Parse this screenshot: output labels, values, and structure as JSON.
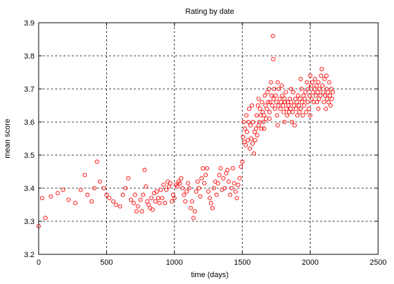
{
  "chart_data": {
    "type": "scatter",
    "title": "Rating by date",
    "xlabel": "time (days)",
    "ylabel": "mean score",
    "xlim": [
      0,
      2500
    ],
    "ylim": [
      3.2,
      3.9
    ],
    "xticks": [
      "0",
      "500",
      "1000",
      "1500",
      "2000",
      "2500"
    ],
    "yticks": [
      "3.2",
      "3.3",
      "3.4",
      "3.5",
      "3.6",
      "3.7",
      "3.8",
      "3.9"
    ],
    "grid": true,
    "marker_color": "#ff0000",
    "series": [
      {
        "name": "",
        "points": [
          [
            0,
            3.285
          ],
          [
            25,
            3.37
          ],
          [
            50,
            3.31
          ],
          [
            90,
            3.375
          ],
          [
            140,
            3.385
          ],
          [
            180,
            3.395
          ],
          [
            220,
            3.365
          ],
          [
            270,
            3.355
          ],
          [
            310,
            3.395
          ],
          [
            340,
            3.44
          ],
          [
            360,
            3.38
          ],
          [
            390,
            3.36
          ],
          [
            410,
            3.4
          ],
          [
            430,
            3.48
          ],
          [
            450,
            3.42
          ],
          [
            480,
            3.4
          ],
          [
            500,
            3.38
          ],
          [
            520,
            3.37
          ],
          [
            550,
            3.36
          ],
          [
            570,
            3.35
          ],
          [
            600,
            3.345
          ],
          [
            620,
            3.38
          ],
          [
            640,
            3.4
          ],
          [
            660,
            3.43
          ],
          [
            680,
            3.365
          ],
          [
            700,
            3.355
          ],
          [
            710,
            3.38
          ],
          [
            720,
            3.33
          ],
          [
            730,
            3.345
          ],
          [
            750,
            3.365
          ],
          [
            760,
            3.33
          ],
          [
            770,
            3.38
          ],
          [
            780,
            3.455
          ],
          [
            790,
            3.405
          ],
          [
            800,
            3.36
          ],
          [
            810,
            3.35
          ],
          [
            820,
            3.34
          ],
          [
            830,
            3.37
          ],
          [
            840,
            3.335
          ],
          [
            850,
            3.385
          ],
          [
            860,
            3.36
          ],
          [
            870,
            3.39
          ],
          [
            880,
            3.37
          ],
          [
            890,
            3.355
          ],
          [
            900,
            3.395
          ],
          [
            910,
            3.37
          ],
          [
            920,
            3.41
          ],
          [
            930,
            3.355
          ],
          [
            940,
            3.395
          ],
          [
            950,
            3.42
          ],
          [
            960,
            3.405
          ],
          [
            970,
            3.415
          ],
          [
            980,
            3.36
          ],
          [
            990,
            3.38
          ],
          [
            1000,
            3.37
          ],
          [
            1010,
            3.41
          ],
          [
            1020,
            3.405
          ],
          [
            1030,
            3.42
          ],
          [
            1040,
            3.415
          ],
          [
            1050,
            3.43
          ],
          [
            1060,
            3.4
          ],
          [
            1070,
            3.38
          ],
          [
            1080,
            3.36
          ],
          [
            1090,
            3.39
          ],
          [
            1100,
            3.415
          ],
          [
            1110,
            3.4
          ],
          [
            1120,
            3.34
          ],
          [
            1130,
            3.36
          ],
          [
            1140,
            3.31
          ],
          [
            1150,
            3.33
          ],
          [
            1160,
            3.39
          ],
          [
            1170,
            3.42
          ],
          [
            1180,
            3.4
          ],
          [
            1190,
            3.375
          ],
          [
            1200,
            3.43
          ],
          [
            1210,
            3.46
          ],
          [
            1220,
            3.415
          ],
          [
            1230,
            3.44
          ],
          [
            1240,
            3.46
          ],
          [
            1250,
            3.39
          ],
          [
            1260,
            3.37
          ],
          [
            1270,
            3.355
          ],
          [
            1280,
            3.34
          ],
          [
            1290,
            3.4
          ],
          [
            1300,
            3.42
          ],
          [
            1310,
            3.38
          ],
          [
            1320,
            3.415
          ],
          [
            1330,
            3.44
          ],
          [
            1340,
            3.46
          ],
          [
            1350,
            3.395
          ],
          [
            1360,
            3.43
          ],
          [
            1370,
            3.4
          ],
          [
            1380,
            3.445
          ],
          [
            1390,
            3.455
          ],
          [
            1400,
            3.42
          ],
          [
            1410,
            3.38
          ],
          [
            1420,
            3.4
          ],
          [
            1430,
            3.46
          ],
          [
            1440,
            3.415
          ],
          [
            1450,
            3.39
          ],
          [
            1460,
            3.37
          ],
          [
            1470,
            3.41
          ],
          [
            1480,
            3.43
          ],
          [
            1490,
            3.465
          ],
          [
            1500,
            3.48
          ],
          [
            1505,
            3.555
          ],
          [
            1510,
            3.6
          ],
          [
            1515,
            3.54
          ],
          [
            1520,
            3.58
          ],
          [
            1525,
            3.53
          ],
          [
            1530,
            3.62
          ],
          [
            1535,
            3.57
          ],
          [
            1540,
            3.545
          ],
          [
            1545,
            3.6
          ],
          [
            1550,
            3.64
          ],
          [
            1555,
            3.52
          ],
          [
            1560,
            3.59
          ],
          [
            1565,
            3.55
          ],
          [
            1570,
            3.65
          ],
          [
            1575,
            3.535
          ],
          [
            1580,
            3.6
          ],
          [
            1585,
            3.505
          ],
          [
            1590,
            3.57
          ],
          [
            1595,
            3.545
          ],
          [
            1600,
            3.58
          ],
          [
            1605,
            3.62
          ],
          [
            1610,
            3.56
          ],
          [
            1615,
            3.65
          ],
          [
            1620,
            3.59
          ],
          [
            1625,
            3.6
          ],
          [
            1630,
            3.64
          ],
          [
            1635,
            3.62
          ],
          [
            1640,
            3.58
          ],
          [
            1645,
            3.66
          ],
          [
            1650,
            3.63
          ],
          [
            1655,
            3.6
          ],
          [
            1660,
            3.62
          ],
          [
            1665,
            3.68
          ],
          [
            1670,
            3.65
          ],
          [
            1675,
            3.61
          ],
          [
            1680,
            3.64
          ],
          [
            1685,
            3.69
          ],
          [
            1690,
            3.66
          ],
          [
            1695,
            3.7
          ],
          [
            1700,
            3.63
          ],
          [
            1705,
            3.66
          ],
          [
            1710,
            3.72
          ],
          [
            1715,
            3.68
          ],
          [
            1720,
            3.65
          ],
          [
            1725,
            3.86
          ],
          [
            1728,
            3.79
          ],
          [
            1730,
            3.67
          ],
          [
            1735,
            3.7
          ],
          [
            1740,
            3.64
          ],
          [
            1745,
            3.68
          ],
          [
            1750,
            3.66
          ],
          [
            1755,
            3.62
          ],
          [
            1760,
            3.59
          ],
          [
            1765,
            3.65
          ],
          [
            1770,
            3.7
          ],
          [
            1775,
            3.67
          ],
          [
            1780,
            3.64
          ],
          [
            1785,
            3.66
          ],
          [
            1790,
            3.71
          ],
          [
            1795,
            3.68
          ],
          [
            1800,
            3.65
          ],
          [
            1805,
            3.63
          ],
          [
            1810,
            3.67
          ],
          [
            1815,
            3.66
          ],
          [
            1820,
            3.69
          ],
          [
            1825,
            3.64
          ],
          [
            1830,
            3.62
          ],
          [
            1835,
            3.66
          ],
          [
            1840,
            3.65
          ],
          [
            1845,
            3.63
          ],
          [
            1850,
            3.67
          ],
          [
            1855,
            3.64
          ],
          [
            1860,
            3.66
          ],
          [
            1865,
            3.6
          ],
          [
            1870,
            3.63
          ],
          [
            1875,
            3.69
          ],
          [
            1880,
            3.65
          ],
          [
            1885,
            3.59
          ],
          [
            1890,
            3.67
          ],
          [
            1895,
            3.64
          ],
          [
            1900,
            3.66
          ],
          [
            1905,
            3.62
          ],
          [
            1910,
            3.68
          ],
          [
            1915,
            3.65
          ],
          [
            1920,
            3.63
          ],
          [
            1925,
            3.67
          ],
          [
            1930,
            3.64
          ],
          [
            1935,
            3.7
          ],
          [
            1940,
            3.66
          ],
          [
            1945,
            3.62
          ],
          [
            1950,
            3.68
          ],
          [
            1955,
            3.65
          ],
          [
            1960,
            3.67
          ],
          [
            1965,
            3.69
          ],
          [
            1970,
            3.63
          ],
          [
            1975,
            3.72
          ],
          [
            1980,
            3.66
          ],
          [
            1985,
            3.7
          ],
          [
            1990,
            3.64
          ],
          [
            1995,
            3.68
          ],
          [
            2000,
            3.74
          ],
          [
            2005,
            3.71
          ],
          [
            2010,
            3.67
          ],
          [
            2015,
            3.72
          ],
          [
            2020,
            3.69
          ],
          [
            2025,
            3.66
          ],
          [
            2030,
            3.7
          ],
          [
            2035,
            3.73
          ],
          [
            2040,
            3.68
          ],
          [
            2045,
            3.71
          ],
          [
            2050,
            3.66
          ],
          [
            2055,
            3.69
          ],
          [
            2060,
            3.72
          ],
          [
            2065,
            3.67
          ],
          [
            2070,
            3.7
          ],
          [
            2075,
            3.68
          ],
          [
            2080,
            3.74
          ],
          [
            2085,
            3.76
          ],
          [
            2090,
            3.71
          ],
          [
            2095,
            3.69
          ],
          [
            2100,
            3.66
          ],
          [
            2105,
            3.73
          ],
          [
            2110,
            3.68
          ],
          [
            2115,
            3.64
          ],
          [
            2120,
            3.7
          ],
          [
            2125,
            3.67
          ],
          [
            2130,
            3.69
          ],
          [
            2135,
            3.66
          ],
          [
            2140,
            3.72
          ],
          [
            2145,
            3.68
          ],
          [
            2150,
            3.65
          ],
          [
            2155,
            3.7
          ],
          [
            2160,
            3.67
          ],
          [
            2165,
            3.69
          ],
          [
            1700,
            3.61
          ],
          [
            1760,
            3.72
          ],
          [
            1810,
            3.6
          ],
          [
            1860,
            3.7
          ],
          [
            1930,
            3.73
          ],
          [
            2000,
            3.62
          ],
          [
            2060,
            3.64
          ],
          [
            2120,
            3.74
          ],
          [
            1620,
            3.67
          ],
          [
            1660,
            3.58
          ]
        ]
      }
    ]
  }
}
